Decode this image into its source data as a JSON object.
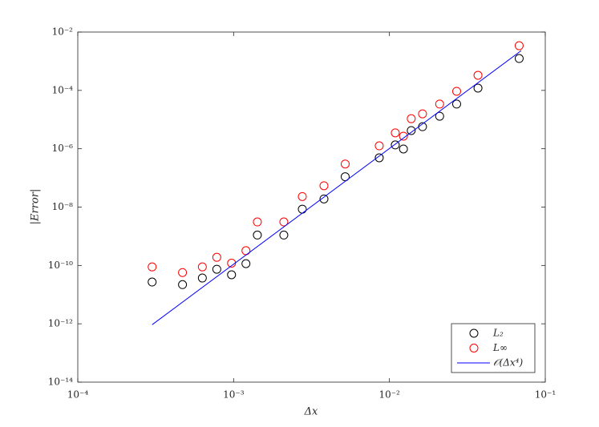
{
  "chart_data": {
    "type": "scatter",
    "x_label": "Δx",
    "y_label": "|Error|",
    "x_scale": "log",
    "y_scale": "log",
    "xlim": [
      0.0001,
      0.1
    ],
    "xticks": [
      {
        "value": 0.0001,
        "label": "10⁻⁴"
      },
      {
        "value": 0.001,
        "label": "10⁻³"
      },
      {
        "value": 0.01,
        "label": "10⁻²"
      },
      {
        "value": 0.1,
        "label": "10⁻¹"
      }
    ],
    "ylim": [
      1e-14,
      0.01
    ],
    "yticks": [
      {
        "value": 1e-14,
        "label": "10⁻¹⁴"
      },
      {
        "value": 1e-12,
        "label": "10⁻¹²"
      },
      {
        "value": 1e-10,
        "label": "10⁻¹⁰"
      },
      {
        "value": 1e-08,
        "label": "10⁻⁸"
      },
      {
        "value": 1e-06,
        "label": "10⁻⁶"
      },
      {
        "value": 0.0001,
        "label": "10⁻⁴"
      },
      {
        "value": 0.01,
        "label": "10⁻²"
      }
    ],
    "legend_position": "lower right",
    "x": [
      0.0003,
      0.00047,
      0.00063,
      0.00078,
      0.00097,
      0.0012,
      0.00142,
      0.0021,
      0.00276,
      0.0038,
      0.0052,
      0.0086,
      0.0109,
      0.0123,
      0.0138,
      0.0163,
      0.021,
      0.027,
      0.037,
      0.068
    ],
    "series": [
      {
        "name": "L₂",
        "color": "#000000",
        "marker": "circle",
        "values": [
          2.7e-11,
          2.2e-11,
          3.7e-11,
          7.4e-11,
          4.8e-11,
          1.15e-10,
          1.1e-09,
          1.1e-09,
          8.5e-09,
          1.9e-08,
          1.1e-07,
          4.9e-07,
          1.35e-06,
          9.8e-07,
          4.2e-06,
          5.7e-06,
          1.3e-05,
          3.4e-05,
          0.00012,
          0.00124
        ]
      },
      {
        "name": "L∞",
        "color": "#ff0000",
        "marker": "circle",
        "values": [
          8.9e-11,
          5.7e-11,
          8.9e-11,
          1.9e-10,
          1.2e-10,
          3.2e-10,
          3.1e-09,
          3.1e-09,
          2.3e-08,
          5.4e-08,
          3e-07,
          1.26e-06,
          3.5e-06,
          2.7e-06,
          1.07e-05,
          1.57e-05,
          3.4e-05,
          9.3e-05,
          0.00033,
          0.0034
        ]
      },
      {
        "name": "𝒪(Δx⁴)",
        "color": "#0000ff",
        "marker": "line",
        "x": [
          0.0003,
          0.07
        ],
        "values": [
          9.3e-13,
          0.0023
        ]
      }
    ]
  }
}
